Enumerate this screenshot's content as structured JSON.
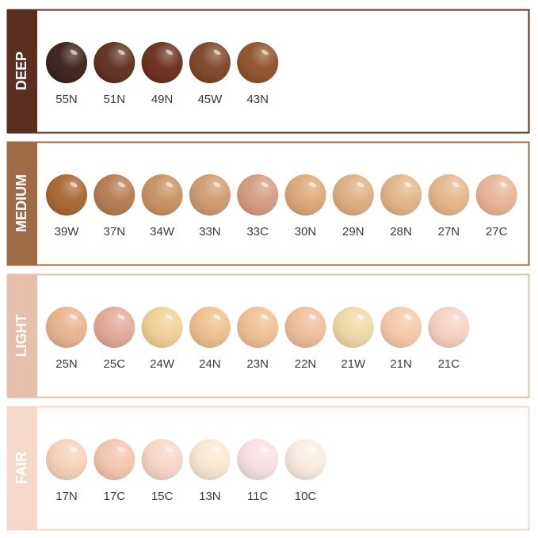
{
  "groups": [
    {
      "label": "DEEP",
      "color": "#5a2f1f",
      "shades": [
        {
          "name": "55N",
          "color": "#3a1e17"
        },
        {
          "name": "51N",
          "color": "#5c2e1c"
        },
        {
          "name": "49N",
          "color": "#6a2c1a"
        },
        {
          "name": "45W",
          "color": "#7a4325"
        },
        {
          "name": "43N",
          "color": "#8e5028"
        }
      ]
    },
    {
      "label": "MEDIUM",
      "color": "#9d6b46",
      "shades": [
        {
          "name": "39W",
          "color": "#a8642f"
        },
        {
          "name": "37N",
          "color": "#b57a50"
        },
        {
          "name": "34W",
          "color": "#c7905f"
        },
        {
          "name": "33N",
          "color": "#cf9a70"
        },
        {
          "name": "33C",
          "color": "#d49a80"
        },
        {
          "name": "30N",
          "color": "#dca777"
        },
        {
          "name": "29N",
          "color": "#dfad82"
        },
        {
          "name": "28N",
          "color": "#e3b487"
        },
        {
          "name": "27N",
          "color": "#e6b588"
        },
        {
          "name": "27C",
          "color": "#e8b394"
        }
      ]
    },
    {
      "label": "LIGHT",
      "color": "#e6c0aa",
      "shades": [
        {
          "name": "25N",
          "color": "#e8b38c"
        },
        {
          "name": "25C",
          "color": "#e3a896"
        },
        {
          "name": "24W",
          "color": "#f1d093"
        },
        {
          "name": "24N",
          "color": "#eec08c"
        },
        {
          "name": "23N",
          "color": "#efbf93"
        },
        {
          "name": "22N",
          "color": "#f0bd9a"
        },
        {
          "name": "21W",
          "color": "#f1d9a6"
        },
        {
          "name": "21N",
          "color": "#f5c9a8"
        },
        {
          "name": "21C",
          "color": "#f6d1c2"
        }
      ]
    },
    {
      "label": "FAIR",
      "color": "#f5d8c9",
      "shades": [
        {
          "name": "17N",
          "color": "#f7d2b8"
        },
        {
          "name": "17C",
          "color": "#f5c5ad"
        },
        {
          "name": "15C",
          "color": "#f9d6c6"
        },
        {
          "name": "13N",
          "color": "#f8e9d2"
        },
        {
          "name": "11C",
          "color": "#f8e0e2"
        },
        {
          "name": "10C",
          "color": "#f9ece1"
        }
      ]
    }
  ]
}
